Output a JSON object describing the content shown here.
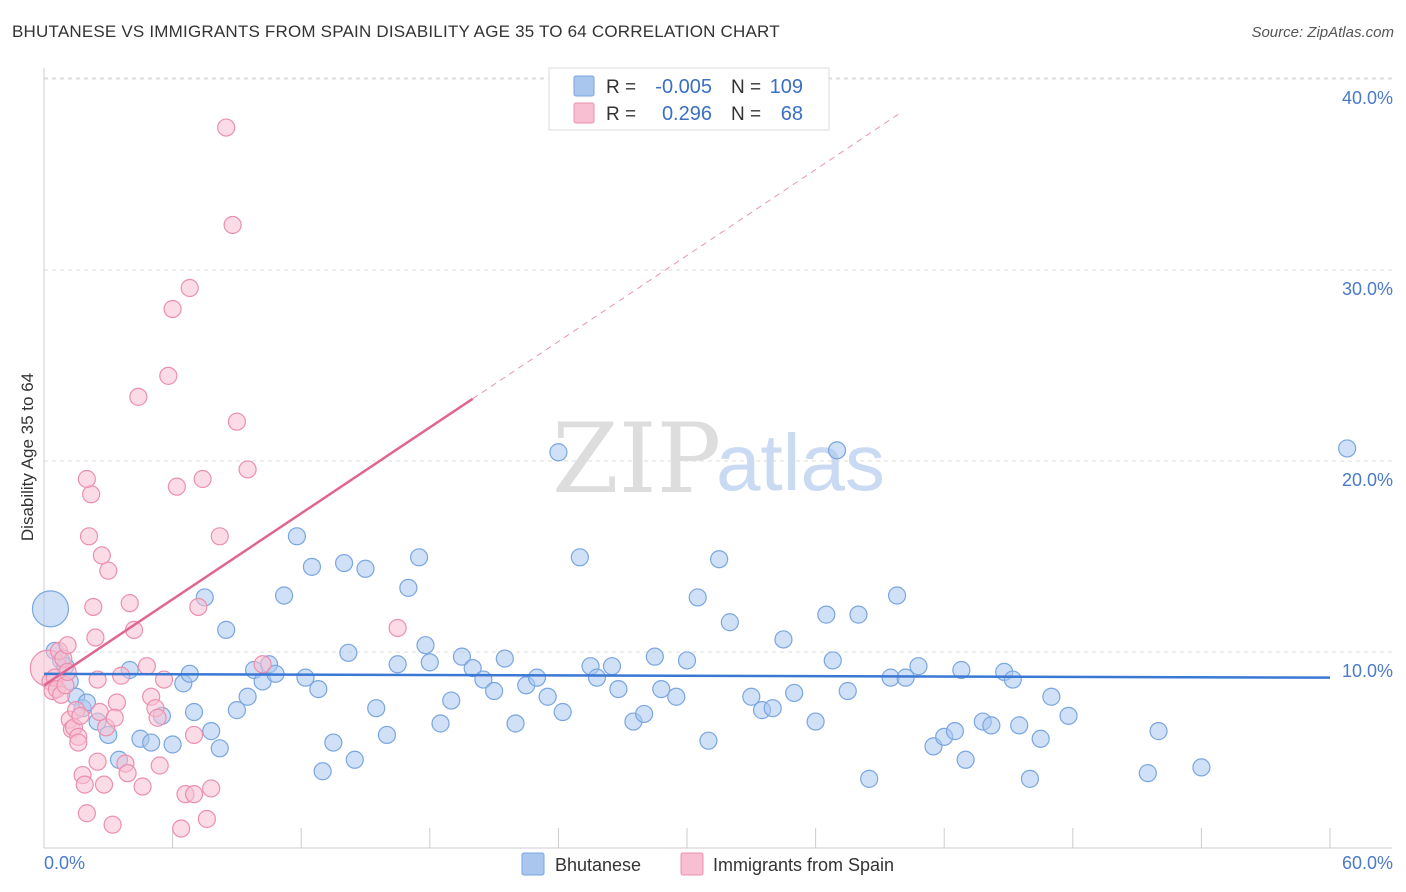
{
  "title": "BHUTANESE VS IMMIGRANTS FROM SPAIN DISABILITY AGE 35 TO 64 CORRELATION CHART",
  "source": "Source: ZipAtlas.com",
  "watermark": {
    "zip": "ZIP",
    "atlas": "atlas"
  },
  "colors": {
    "blue_fill": "#a9c6ee",
    "blue_stroke": "#7aa6e0",
    "blue_line": "#3a78d4",
    "pink_fill": "#f7bfd1",
    "pink_stroke": "#ec8fae",
    "pink_line": "#e0668f",
    "grid": "#dddddd",
    "tick_text": "#4a7ac9"
  },
  "legend": {
    "r_label": "R =",
    "n_label": "N =",
    "series": [
      {
        "name": "Bhutanese",
        "r": "-0.005",
        "n": "109",
        "color": "blue"
      },
      {
        "name": "Immigrants from Spain",
        "r": "0.296",
        "n": "68",
        "color": "pink"
      }
    ]
  },
  "chart_data": {
    "type": "scatter",
    "title": "BHUTANESE VS IMMIGRANTS FROM SPAIN DISABILITY AGE 35 TO 64 CORRELATION CHART",
    "xlabel": "",
    "ylabel": "Disability Age 35 to 64",
    "xlim": [
      0,
      60
    ],
    "ylim": [
      0,
      40
    ],
    "x_ticks": [
      0,
      6,
      12,
      18,
      24,
      30,
      36,
      42,
      48,
      54,
      60
    ],
    "x_tick_labels": {
      "first": "0.0%",
      "last": "60.0%"
    },
    "y_ticks": [
      10,
      20,
      30,
      40
    ],
    "y_tick_labels": [
      "10.0%",
      "20.0%",
      "30.0%",
      "40.0%"
    ],
    "grid": true,
    "legend_position": "top-center",
    "series": [
      {
        "name": "Bhutanese",
        "color": "blue",
        "trend": {
          "x": [
            0,
            60
          ],
          "y": [
            9.8,
            9.6
          ],
          "dashed_extension": false
        },
        "points": [
          [
            0.3,
            13.2,
            "big"
          ],
          [
            0.5,
            11.0
          ],
          [
            0.8,
            10.5
          ],
          [
            1.0,
            10.2
          ],
          [
            1.2,
            9.4
          ],
          [
            1.5,
            8.6
          ],
          [
            1.8,
            8.0
          ],
          [
            2.0,
            8.3
          ],
          [
            2.5,
            7.3
          ],
          [
            3.0,
            6.6
          ],
          [
            3.5,
            5.3
          ],
          [
            4.0,
            10.0
          ],
          [
            4.5,
            6.4
          ],
          [
            5.0,
            6.2
          ],
          [
            5.5,
            7.6
          ],
          [
            6.0,
            6.1
          ],
          [
            6.5,
            9.3
          ],
          [
            6.8,
            9.8
          ],
          [
            7.0,
            7.8
          ],
          [
            7.5,
            13.8
          ],
          [
            7.8,
            6.8
          ],
          [
            8.2,
            5.9
          ],
          [
            8.5,
            12.1
          ],
          [
            9.0,
            7.9
          ],
          [
            9.5,
            8.6
          ],
          [
            9.8,
            10.0
          ],
          [
            10.2,
            9.4
          ],
          [
            10.5,
            10.3
          ],
          [
            10.8,
            9.8
          ],
          [
            11.2,
            13.9
          ],
          [
            11.8,
            17.0
          ],
          [
            12.2,
            9.6
          ],
          [
            12.5,
            15.4
          ],
          [
            13.0,
            4.7
          ],
          [
            13.5,
            6.2
          ],
          [
            14.0,
            15.6
          ],
          [
            14.2,
            10.9
          ],
          [
            14.5,
            5.3
          ],
          [
            15.0,
            15.3
          ],
          [
            15.5,
            8.0
          ],
          [
            16.0,
            6.6
          ],
          [
            16.5,
            10.3
          ],
          [
            17.0,
            14.3
          ],
          [
            17.5,
            15.9
          ],
          [
            17.8,
            11.3
          ],
          [
            18.0,
            10.4
          ],
          [
            18.5,
            7.2
          ],
          [
            19.0,
            8.4
          ],
          [
            19.5,
            10.7
          ],
          [
            20.0,
            10.1
          ],
          [
            20.5,
            9.5
          ],
          [
            21.0,
            8.9
          ],
          [
            21.5,
            10.6
          ],
          [
            22.0,
            7.2
          ],
          [
            22.5,
            9.2
          ],
          [
            23.0,
            9.6
          ],
          [
            23.5,
            8.6
          ],
          [
            24.0,
            21.4
          ],
          [
            24.2,
            7.8
          ],
          [
            25.0,
            15.9
          ],
          [
            25.5,
            10.2
          ],
          [
            25.8,
            9.6
          ],
          [
            26.5,
            10.2
          ],
          [
            26.8,
            9.0
          ],
          [
            27.5,
            7.3
          ],
          [
            28.0,
            7.7
          ],
          [
            28.5,
            10.7
          ],
          [
            28.8,
            9.0
          ],
          [
            29.5,
            8.6
          ],
          [
            30.0,
            10.5
          ],
          [
            30.5,
            13.8
          ],
          [
            31.0,
            6.3
          ],
          [
            31.5,
            15.8
          ],
          [
            32.0,
            12.5
          ],
          [
            33.0,
            8.6
          ],
          [
            33.5,
            7.9
          ],
          [
            34.0,
            8.0
          ],
          [
            34.5,
            11.6
          ],
          [
            35.0,
            8.8
          ],
          [
            36.0,
            7.3
          ],
          [
            36.5,
            12.9
          ],
          [
            37.0,
            21.5
          ],
          [
            37.5,
            8.9
          ],
          [
            38.0,
            12.9
          ],
          [
            38.5,
            4.3
          ],
          [
            39.5,
            9.6
          ],
          [
            39.8,
            13.9
          ],
          [
            40.2,
            9.6
          ],
          [
            40.8,
            10.2
          ],
          [
            41.5,
            6.0
          ],
          [
            42.0,
            6.5
          ],
          [
            42.5,
            6.8
          ],
          [
            43.0,
            5.3
          ],
          [
            43.8,
            7.3
          ],
          [
            44.2,
            7.1
          ],
          [
            44.8,
            9.9
          ],
          [
            45.2,
            9.5
          ],
          [
            45.5,
            7.1
          ],
          [
            46.0,
            4.3
          ],
          [
            46.5,
            6.4
          ],
          [
            47.0,
            8.6
          ],
          [
            47.8,
            7.6
          ],
          [
            51.5,
            4.6
          ],
          [
            52.0,
            6.8
          ],
          [
            54.0,
            4.9
          ],
          [
            60.8,
            21.6
          ],
          [
            42.8,
            10.0
          ],
          [
            36.8,
            10.5
          ],
          [
            12.8,
            9.0
          ]
        ]
      },
      {
        "name": "Immigrants from Spain",
        "color": "pink",
        "trend": {
          "x": [
            0,
            20
          ],
          "y": [
            9.2,
            24.2
          ],
          "dashed_extension": true,
          "dash_to": [
            40,
            39.2
          ]
        },
        "points": [
          [
            0.2,
            10.1,
            "big"
          ],
          [
            0.3,
            9.4
          ],
          [
            0.4,
            8.9
          ],
          [
            0.5,
            9.6
          ],
          [
            0.6,
            9.0
          ],
          [
            0.7,
            11.0
          ],
          [
            0.8,
            8.7
          ],
          [
            0.9,
            10.6
          ],
          [
            1.0,
            9.2
          ],
          [
            1.1,
            11.3
          ],
          [
            1.2,
            7.4
          ],
          [
            1.3,
            6.9
          ],
          [
            1.4,
            7.0
          ],
          [
            1.5,
            7.9
          ],
          [
            1.6,
            6.5
          ],
          [
            1.7,
            7.6
          ],
          [
            1.8,
            4.5
          ],
          [
            1.9,
            4.0
          ],
          [
            2.0,
            2.5
          ],
          [
            2.1,
            17.0
          ],
          [
            2.2,
            19.2
          ],
          [
            2.3,
            13.3
          ],
          [
            2.4,
            11.7
          ],
          [
            2.5,
            5.2
          ],
          [
            2.6,
            7.8
          ],
          [
            2.7,
            16.0
          ],
          [
            2.8,
            4.0
          ],
          [
            2.9,
            7.0
          ],
          [
            3.0,
            15.2
          ],
          [
            3.2,
            1.9
          ],
          [
            3.4,
            8.3
          ],
          [
            3.6,
            9.7
          ],
          [
            3.8,
            5.1
          ],
          [
            4.0,
            13.5
          ],
          [
            4.2,
            12.1
          ],
          [
            4.4,
            24.3
          ],
          [
            4.6,
            3.9
          ],
          [
            4.8,
            10.2
          ],
          [
            5.0,
            8.6
          ],
          [
            5.2,
            8.0
          ],
          [
            5.4,
            5.0
          ],
          [
            5.6,
            9.5
          ],
          [
            5.8,
            25.4
          ],
          [
            6.0,
            28.9
          ],
          [
            6.2,
            19.6
          ],
          [
            6.4,
            1.7
          ],
          [
            6.6,
            3.5
          ],
          [
            6.8,
            30.0
          ],
          [
            7.0,
            6.6
          ],
          [
            7.2,
            13.3
          ],
          [
            7.4,
            20.0
          ],
          [
            7.6,
            2.2
          ],
          [
            7.8,
            3.8
          ],
          [
            8.2,
            17.0
          ],
          [
            8.5,
            38.4
          ],
          [
            8.8,
            33.3
          ],
          [
            9.0,
            23.0
          ],
          [
            9.5,
            20.5
          ],
          [
            10.2,
            10.3
          ],
          [
            16.5,
            12.2
          ],
          [
            7.0,
            3.5
          ],
          [
            2.5,
            9.5
          ],
          [
            3.3,
            7.5
          ],
          [
            1.6,
            6.2
          ],
          [
            3.9,
            4.6
          ],
          [
            2.0,
            20.0
          ],
          [
            5.3,
            7.5
          ],
          [
            1.1,
            9.9
          ]
        ]
      }
    ]
  },
  "y_axis_label": "Disability Age 35 to 64",
  "x_axis_labels": {
    "first": "0.0%",
    "last": "60.0%"
  }
}
